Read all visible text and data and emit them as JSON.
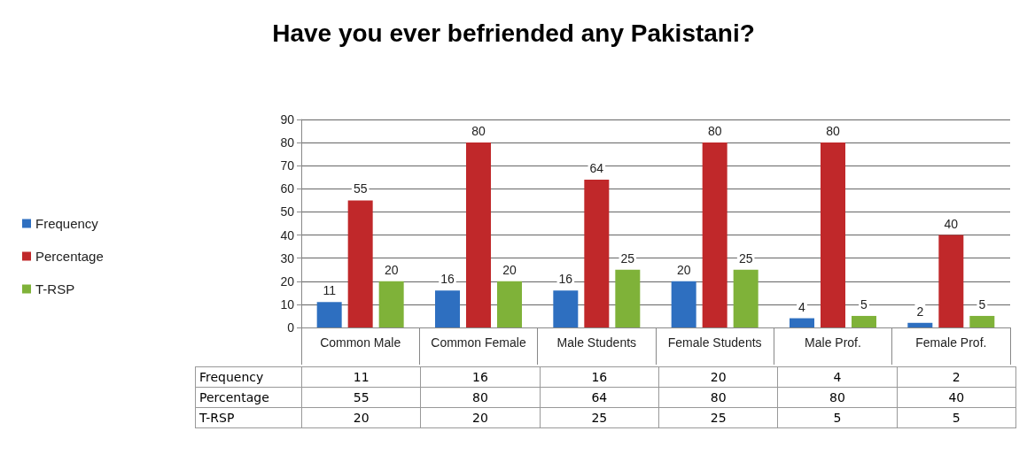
{
  "chart_data": {
    "type": "bar",
    "title": "Have you ever befriended any Pakistani?",
    "categories": [
      "Common Male",
      "Common Female",
      "Male Students",
      "Female Students",
      "Male Prof.",
      "Female Prof."
    ],
    "series": [
      {
        "name": "Frequency",
        "color": "#2e6fc0",
        "values": [
          11,
          16,
          16,
          20,
          4,
          2
        ],
        "value_labels": [
          "11",
          "16",
          "16",
          "20",
          "4",
          "2"
        ]
      },
      {
        "name": "Percentage",
        "color": "#c0282a",
        "values": [
          55,
          80,
          64,
          80,
          80,
          40
        ],
        "value_labels": [
          "55",
          "80",
          "64",
          "80",
          "80",
          "40"
        ]
      },
      {
        "name": "T-RSP",
        "color": "#7fb239",
        "values": [
          20,
          20,
          25,
          25,
          5,
          5
        ],
        "value_labels": [
          "20",
          "20",
          "25",
          "25",
          "5",
          "5"
        ]
      }
    ],
    "ylim": [
      0,
      90
    ],
    "yticks": [
      0,
      10,
      20,
      30,
      40,
      50,
      60,
      70,
      80,
      90
    ],
    "grid": "y",
    "legend": "left",
    "data_labels": true
  }
}
